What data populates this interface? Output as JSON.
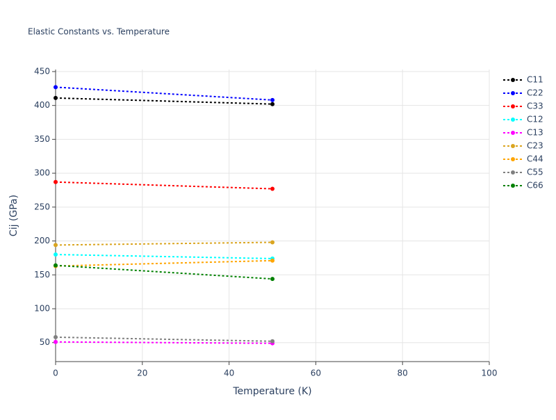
{
  "chart_data": {
    "type": "line",
    "title": "Elastic Constants vs. Temperature",
    "x_label": "Temperature (K)",
    "y_label": "Cij (GPa)",
    "x": [
      0,
      50
    ],
    "series": [
      {
        "name": "C11",
        "color": "#000000",
        "values": [
          411,
          402
        ]
      },
      {
        "name": "C22",
        "color": "#0000ff",
        "values": [
          427,
          408
        ]
      },
      {
        "name": "C33",
        "color": "#ff0000",
        "values": [
          287,
          277
        ]
      },
      {
        "name": "C12",
        "color": "#00ffff",
        "values": [
          180,
          174
        ]
      },
      {
        "name": "C13",
        "color": "#ff00ff",
        "values": [
          51,
          49
        ]
      },
      {
        "name": "C23",
        "color": "#daa520",
        "values": [
          194,
          198
        ]
      },
      {
        "name": "C44",
        "color": "#ffa500",
        "values": [
          163,
          171
        ]
      },
      {
        "name": "C55",
        "color": "#808080",
        "values": [
          58,
          52
        ]
      },
      {
        "name": "C66",
        "color": "#008000",
        "values": [
          164,
          144
        ]
      }
    ],
    "xlim": [
      0,
      100
    ],
    "xticks": [
      0,
      20,
      40,
      60,
      80,
      100
    ],
    "ylim": [
      22,
      453
    ],
    "yticks": [
      50,
      100,
      150,
      200,
      250,
      300,
      350,
      400,
      450
    ],
    "grid": true,
    "legend": "right"
  }
}
